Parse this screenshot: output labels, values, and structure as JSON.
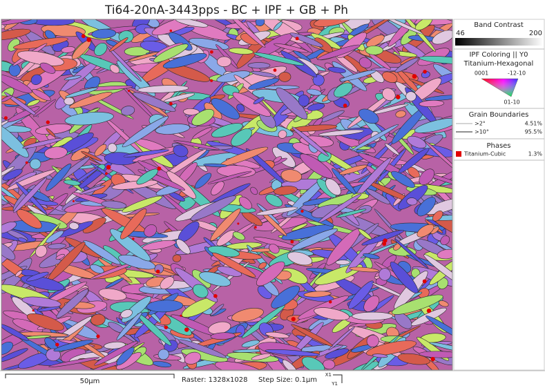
{
  "header": {
    "title": "Ti64-20nA-3443pps - BC + IPF + GB + Ph"
  },
  "legend": {
    "band_contrast": {
      "title": "Band Contrast",
      "min": 46,
      "max": 200
    },
    "ipf": {
      "title": "IPF Coloring || Y0",
      "phase": "Titanium-Hexagonal",
      "corner_top_left": "0001",
      "corner_top_right": "-12-10",
      "corner_bottom": "01-10"
    },
    "grain_boundaries": {
      "title": "Grain Boundaries",
      "rows": [
        {
          "label": ">2°",
          "value": "4.51%"
        },
        {
          "label": ">10°",
          "value": "95.5%"
        }
      ]
    },
    "phases": {
      "title": "Phases",
      "rows": [
        {
          "label": "Titanium-Cubic",
          "value": "1.3%"
        }
      ]
    }
  },
  "footer": {
    "scale": "50µm",
    "raster": "Raster: 1328x1028",
    "step_size": "Step Size: 0.1µm",
    "x_axis": "X1",
    "y_axis": "Y1"
  }
}
